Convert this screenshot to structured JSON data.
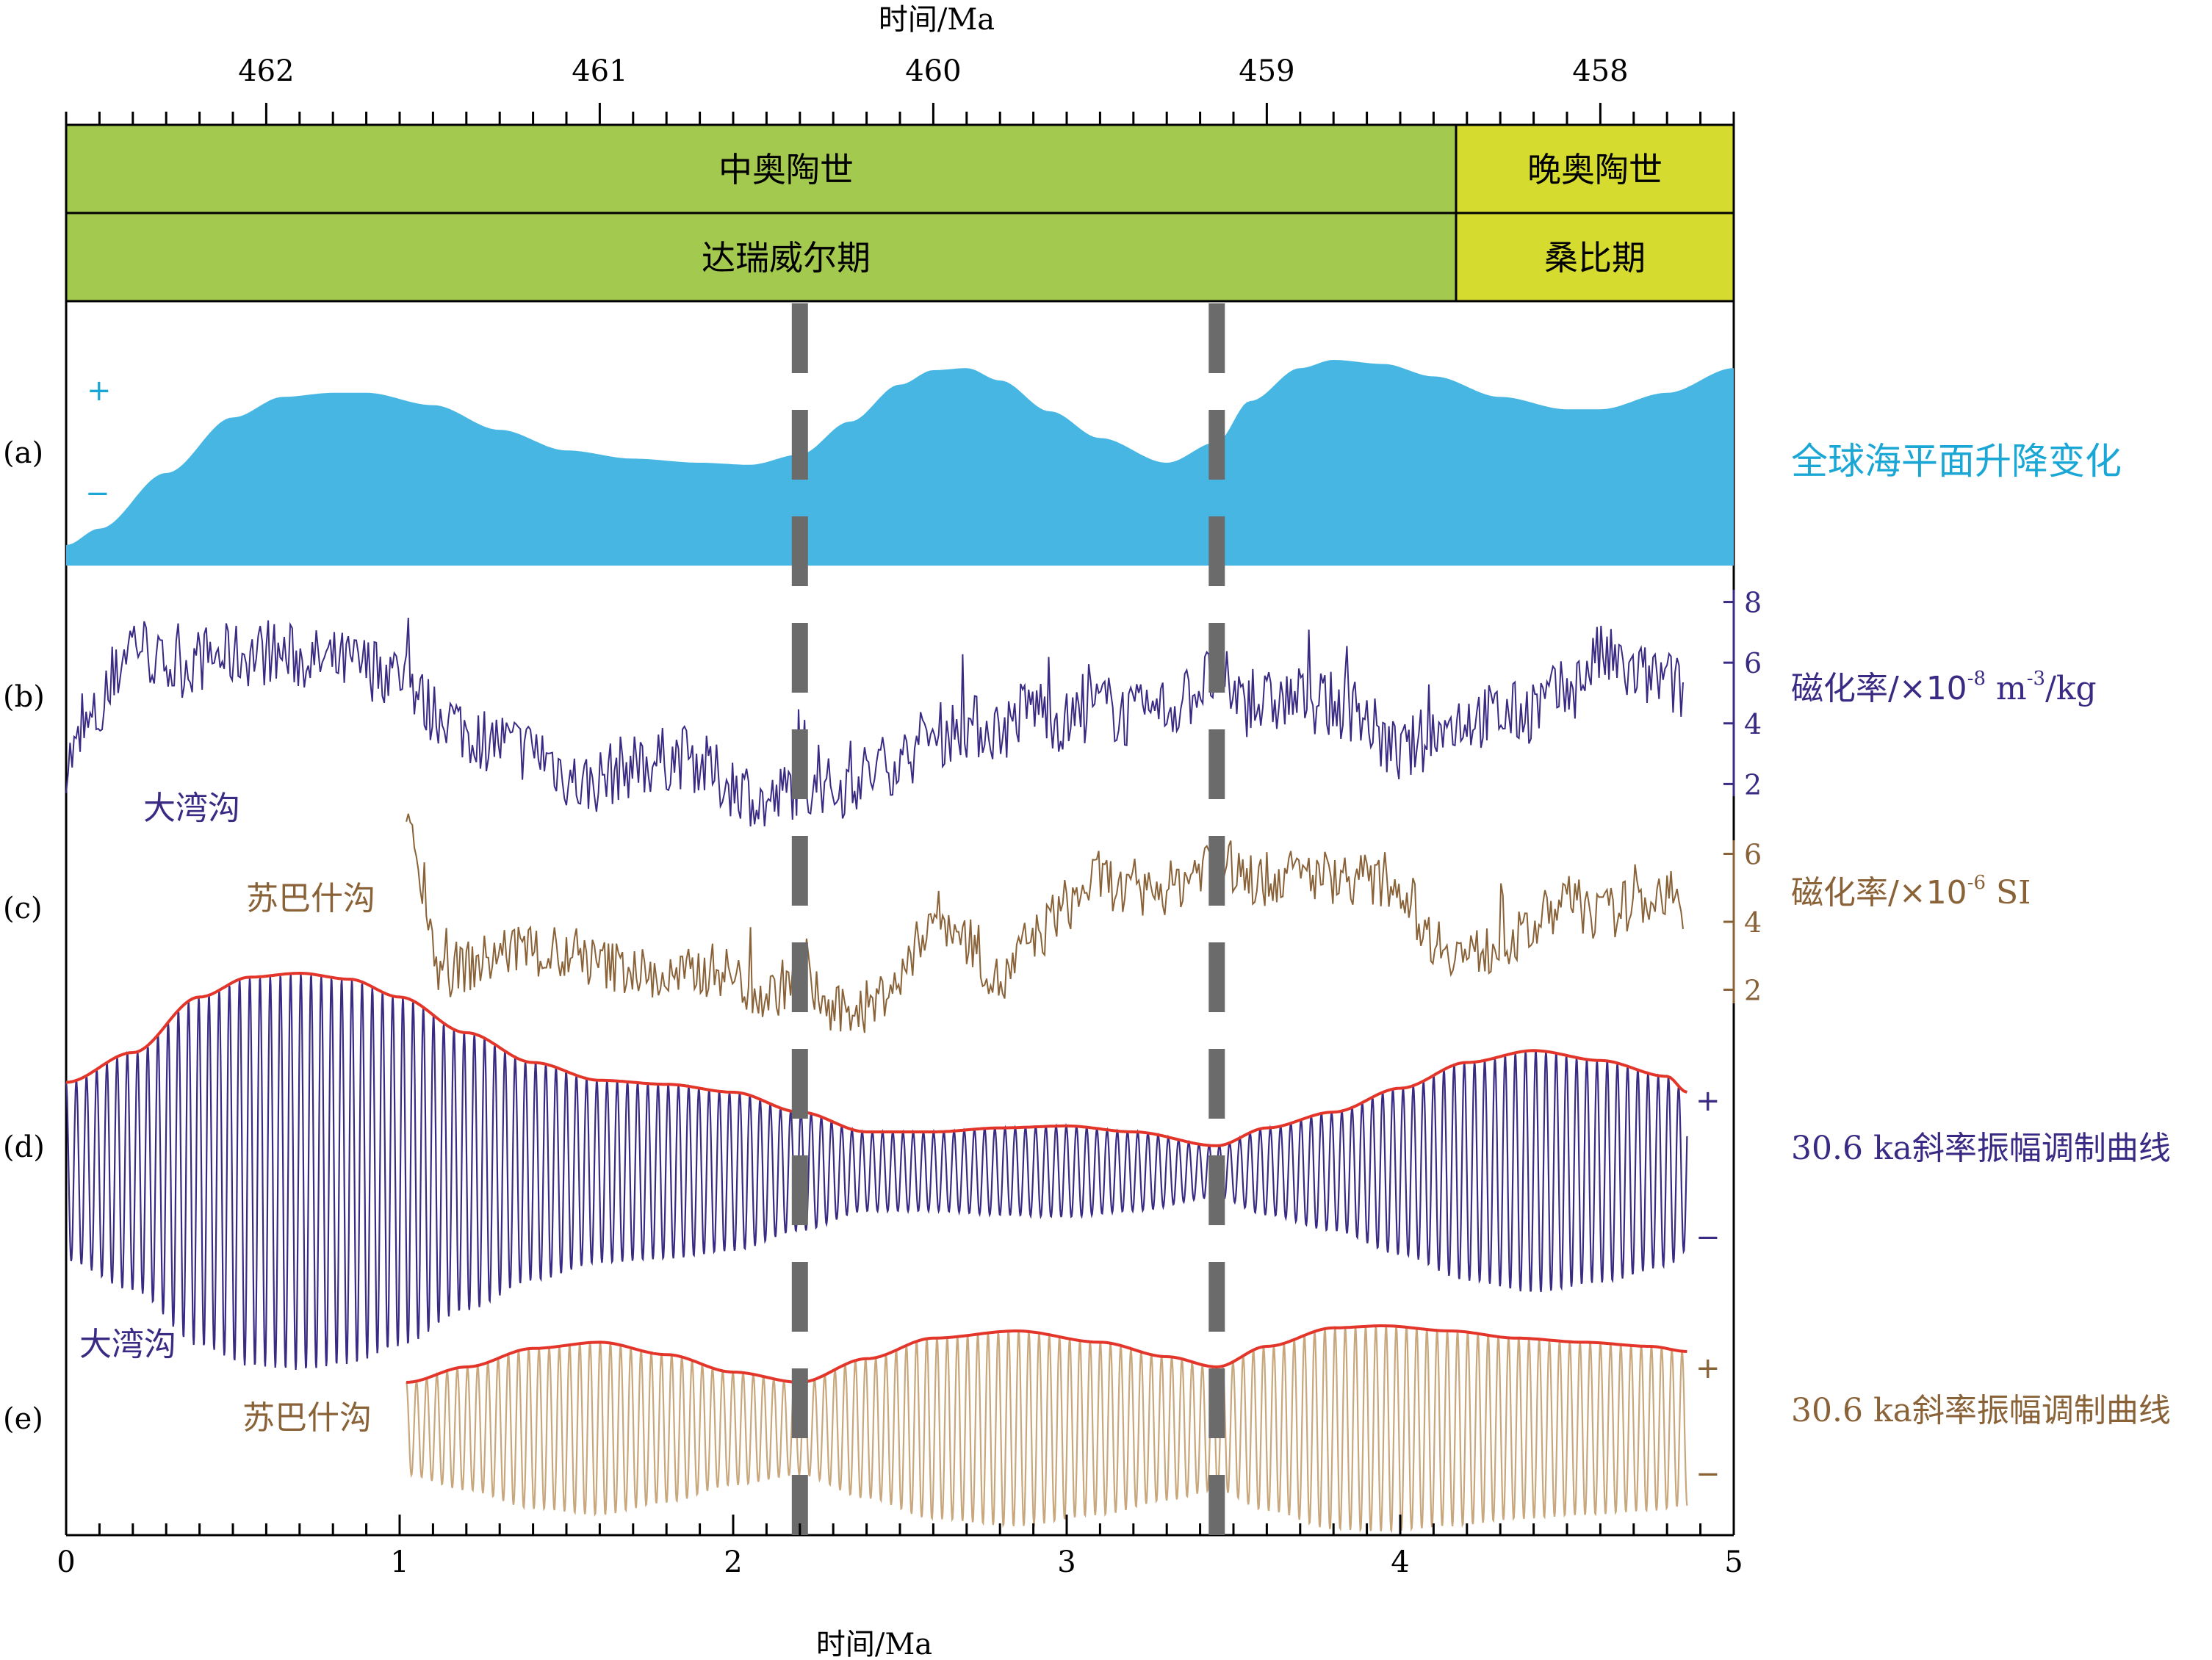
{
  "colors": {
    "purple": "#3b2a84",
    "brown": "#8a6238",
    "cyan": "#1aa7d6",
    "sea_fill": "#47b6e3",
    "envelope_red": "#e3352a",
    "stage_green": "#a4c94f",
    "stage_yellow": "#d6dc2f",
    "dash_gray": "#6b6b6b",
    "light_brown": "#c9a77c"
  },
  "header": {
    "top_axis_title": "时间/Ma",
    "top_ticks": [
      "462",
      "461",
      "460",
      "459",
      "458"
    ],
    "series_row": [
      "中奥陶世",
      "晚奥陶世"
    ],
    "stage_row": [
      "达瑞威尔期",
      "桑比期"
    ]
  },
  "panels": {
    "a": {
      "label": "(a)",
      "plus": "+",
      "minus": "−",
      "title": "全球海平面升降变化"
    },
    "b": {
      "label": "(b)",
      "site": "大湾沟",
      "title": "磁化率/×10",
      "title_sup": "-8",
      "title_unit": " m",
      "title_unit_sup": "-3",
      "title_tail": "/kg",
      "y_ticks": [
        "8",
        "6",
        "4",
        "2"
      ]
    },
    "c": {
      "label": "(c)",
      "site": "苏巴什沟",
      "title": "磁化率/×10",
      "title_sup": "-6",
      "title_tail": " SI",
      "y_ticks": [
        "6",
        "4",
        "2"
      ]
    },
    "d": {
      "label": "(d)",
      "site": "大湾沟",
      "plus": "+",
      "minus": "−",
      "title": "30.6 ka斜率振幅调制曲线"
    },
    "e": {
      "label": "(e)",
      "site": "苏巴什沟",
      "plus": "+",
      "minus": "−",
      "title": "30.6 ka斜率振幅调制曲线"
    }
  },
  "bottom_axis": {
    "title": "时间/Ma",
    "ticks": [
      "0",
      "1",
      "2",
      "3",
      "4",
      "5"
    ]
  },
  "chart_data": {
    "type": "line",
    "x_axis": {
      "label": "时间/Ma",
      "range": [
        0,
        5
      ]
    },
    "top_axis": {
      "label": "时间/Ma",
      "range_Ma": [
        462.6,
        457.6
      ]
    },
    "boundaries": {
      "middle_upper_ordovician_at": 4.15,
      "dashed_markers_at": [
        2.2,
        3.45
      ]
    },
    "sea_level": {
      "x": [
        0,
        0.1,
        0.3,
        0.5,
        0.65,
        0.8,
        0.9,
        1.1,
        1.3,
        1.5,
        1.7,
        1.9,
        2.05,
        2.2,
        2.35,
        2.5,
        2.6,
        2.7,
        2.8,
        2.95,
        3.1,
        3.3,
        3.45,
        3.55,
        3.7,
        3.8,
        3.95,
        4.1,
        4.3,
        4.5,
        4.6,
        4.8,
        5.0
      ],
      "y": [
        0.1,
        0.18,
        0.45,
        0.72,
        0.82,
        0.84,
        0.84,
        0.78,
        0.66,
        0.56,
        0.52,
        0.5,
        0.49,
        0.54,
        0.7,
        0.88,
        0.95,
        0.96,
        0.9,
        0.75,
        0.62,
        0.5,
        0.6,
        0.8,
        0.96,
        1.0,
        0.98,
        0.92,
        0.82,
        0.76,
        0.76,
        0.84,
        0.96
      ]
    },
    "series": [
      {
        "name": "大湾沟 磁化率",
        "x": [
          0,
          0.1,
          0.2,
          0.3,
          0.45,
          0.6,
          0.8,
          1.0,
          1.1,
          1.25,
          1.4,
          1.55,
          1.7,
          1.85,
          2.0,
          2.1,
          2.2,
          2.3,
          2.4,
          2.5,
          2.6,
          2.7,
          2.8,
          2.9,
          3.0,
          3.1,
          3.2,
          3.3,
          3.45,
          3.55,
          3.7,
          3.85,
          4.0,
          4.1,
          4.2,
          4.35,
          4.5,
          4.6,
          4.7,
          4.8,
          4.85
        ],
        "values": [
          2.8,
          4.2,
          6.8,
          5.8,
          6.2,
          6.3,
          6.0,
          5.7,
          4.4,
          3.5,
          3.1,
          2.0,
          2.6,
          2.9,
          2.0,
          1.3,
          2.0,
          1.8,
          2.3,
          2.8,
          3.6,
          3.9,
          3.8,
          4.6,
          4.0,
          4.6,
          4.2,
          4.5,
          5.5,
          4.6,
          4.8,
          4.5,
          3.0,
          3.6,
          4.2,
          4.3,
          5.0,
          6.2,
          5.6,
          5.4,
          5.0
        ],
        "ylim": [
          0,
          9.2
        ]
      },
      {
        "name": "苏巴什沟 磁化率",
        "x": [
          1.02,
          1.07,
          1.12,
          1.2,
          1.35,
          1.5,
          1.65,
          1.8,
          1.95,
          2.1,
          2.2,
          2.3,
          2.4,
          2.5,
          2.6,
          2.7,
          2.8,
          2.9,
          3.0,
          3.1,
          3.2,
          3.3,
          3.45,
          3.55,
          3.7,
          3.85,
          4.0,
          4.1,
          4.2,
          4.35,
          4.5,
          4.6,
          4.7,
          4.8,
          4.85
        ],
        "values": [
          7.2,
          5.2,
          2.5,
          2.7,
          3.2,
          2.9,
          2.7,
          2.3,
          2.6,
          1.8,
          2.5,
          1.3,
          1.5,
          2.3,
          4.2,
          3.5,
          2.2,
          3.5,
          4.5,
          5.3,
          4.7,
          5.0,
          5.9,
          5.2,
          5.4,
          5.3,
          5.0,
          3.5,
          3.0,
          3.5,
          4.6,
          4.2,
          4.5,
          4.9,
          4.0
        ],
        "ylim": [
          0,
          8
        ]
      }
    ],
    "amplitude_modulation": {
      "period_ka": 30.6,
      "d_dawangou": {
        "x": [
          0,
          0.2,
          0.4,
          0.55,
          0.7,
          0.85,
          1.0,
          1.2,
          1.4,
          1.6,
          1.8,
          2.0,
          2.2,
          2.4,
          2.6,
          2.8,
          3.0,
          3.2,
          3.45,
          3.6,
          3.8,
          4.0,
          4.2,
          4.4,
          4.6,
          4.8,
          4.86
        ],
        "envelope": [
          0.45,
          0.6,
          0.88,
          0.98,
          1.0,
          0.97,
          0.88,
          0.7,
          0.55,
          0.46,
          0.44,
          0.4,
          0.3,
          0.2,
          0.2,
          0.22,
          0.23,
          0.2,
          0.13,
          0.22,
          0.3,
          0.42,
          0.55,
          0.61,
          0.56,
          0.48,
          0.4
        ]
      },
      "e_subashigou": {
        "x": [
          1.02,
          1.2,
          1.4,
          1.6,
          1.8,
          2.0,
          2.2,
          2.4,
          2.6,
          2.85,
          3.1,
          3.3,
          3.45,
          3.6,
          3.8,
          3.95,
          4.15,
          4.35,
          4.55,
          4.75,
          4.86
        ],
        "envelope": [
          0.45,
          0.6,
          0.78,
          0.84,
          0.72,
          0.55,
          0.45,
          0.68,
          0.88,
          0.95,
          0.84,
          0.7,
          0.6,
          0.8,
          0.98,
          1.0,
          0.95,
          0.88,
          0.84,
          0.8,
          0.75
        ]
      }
    }
  }
}
